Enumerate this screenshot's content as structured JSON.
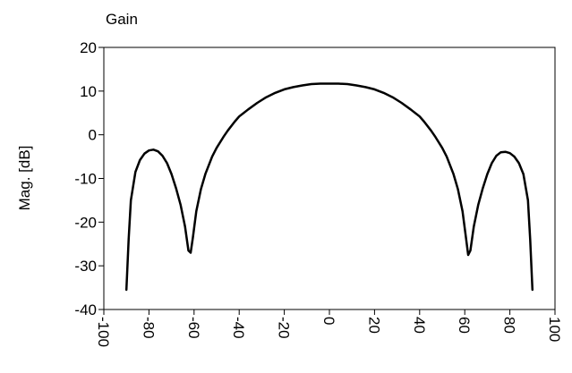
{
  "chart_data": {
    "type": "line",
    "title": "Gain",
    "xlabel": "",
    "ylabel": "Mag. [dB]",
    "xlim": [
      -100,
      100
    ],
    "ylim": [
      -40,
      20
    ],
    "xticks": [
      -100,
      -80,
      -60,
      -40,
      -20,
      0,
      20,
      40,
      60,
      80,
      100
    ],
    "yticks": [
      20,
      10,
      0,
      -10,
      -20,
      -30,
      -40
    ],
    "grid": false,
    "line_color": "#000000",
    "series": [
      {
        "x": [
          -90,
          -89,
          -88,
          -86,
          -84,
          -82,
          -80,
          -78,
          -76,
          -74,
          -72,
          -70,
          -68,
          -66,
          -64,
          -62.5,
          -61.5,
          -60.5,
          -59,
          -57,
          -55,
          -52,
          -50,
          -47,
          -45,
          -42,
          -40,
          -36,
          -32,
          -28,
          -24,
          -20,
          -16,
          -12,
          -8,
          -4,
          0,
          4,
          8,
          12,
          16,
          20,
          24,
          28,
          32,
          36,
          40,
          42,
          45,
          47,
          50,
          52,
          55,
          57,
          59,
          60.5,
          61.5,
          62.5,
          64,
          66,
          68,
          70,
          72,
          74,
          76,
          78,
          80,
          82,
          84,
          86,
          88,
          89,
          90
        ],
        "y": [
          -35.5,
          -24,
          -15,
          -8.5,
          -5.8,
          -4.3,
          -3.6,
          -3.4,
          -3.8,
          -4.8,
          -6.5,
          -9,
          -12.2,
          -16,
          -21,
          -26.5,
          -27,
          -23.5,
          -17.5,
          -12.5,
          -9,
          -5,
          -3,
          -0.5,
          1,
          3,
          4.2,
          5.8,
          7.3,
          8.6,
          9.6,
          10.4,
          10.9,
          11.3,
          11.6,
          11.7,
          11.7,
          11.7,
          11.6,
          11.3,
          10.9,
          10.4,
          9.6,
          8.6,
          7.3,
          5.8,
          4.2,
          3,
          1,
          -0.5,
          -3,
          -5,
          -9,
          -12.5,
          -17.5,
          -23.5,
          -27.5,
          -26.5,
          -21,
          -16,
          -12.2,
          -9,
          -6.5,
          -4.8,
          -4,
          -3.9,
          -4.2,
          -5,
          -6.5,
          -9,
          -15,
          -24,
          -35.5
        ]
      }
    ]
  }
}
